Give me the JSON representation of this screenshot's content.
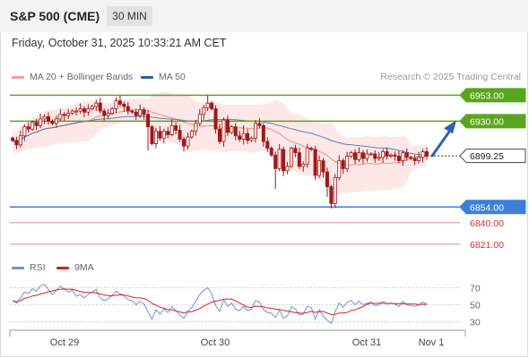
{
  "header": {
    "title": "S&P 500 (CME)",
    "timeframe": "30 MIN",
    "datetime": "Friday, October 31, 2025 10:33:21 AM CET"
  },
  "legend": {
    "ma20_bb": "MA 20 + Bollinger Bands",
    "ma50": "MA 50",
    "rsi": "RSI",
    "rsi_ma": "9MA",
    "research": "Research © 2025 Trading Central"
  },
  "colors": {
    "resistance": "#5aa51e",
    "support": "#3d7fd8",
    "support_red": "#e08a8a",
    "current": "#2b2b2b",
    "bollinger_fill": "#fde3e3",
    "ma20": "#f08a8a",
    "ma50": "#2f5f9e",
    "rsi": "#6e94d8",
    "rsi_ma": "#d62020",
    "candle": "#a01818",
    "arrow": "#2f63a8"
  },
  "chart_data": {
    "type": "candlestick",
    "y_range": [
      6813,
      6962
    ],
    "x_labels": [
      "Oct 29",
      "Oct 30",
      "Oct 31",
      "Nov 1"
    ],
    "levels": [
      {
        "name": "resistance-2",
        "value": 6953.0,
        "label": "6953.00",
        "kind": "resistance"
      },
      {
        "name": "resistance-1",
        "value": 6930.0,
        "label": "6930.00",
        "kind": "resistance"
      },
      {
        "name": "current-price",
        "value": 6899.25,
        "label": "6899.25",
        "kind": "current"
      },
      {
        "name": "support-1",
        "value": 6854.0,
        "label": "6854.00",
        "kind": "support"
      },
      {
        "name": "support-2",
        "value": 6840.0,
        "label": "6840.00",
        "kind": "support_red"
      },
      {
        "name": "support-3",
        "value": 6821.0,
        "label": "6821.00",
        "kind": "support_red"
      }
    ],
    "closes": [
      6913,
      6909,
      6917,
      6925,
      6923,
      6929,
      6926,
      6932,
      6934,
      6930,
      6928,
      6932,
      6936,
      6935,
      6937,
      6939,
      6939,
      6941,
      6938,
      6941,
      6943,
      6946,
      6939,
      6935,
      6937,
      6941,
      6948,
      6945,
      6943,
      6939,
      6938,
      6935,
      6940,
      6936,
      6925,
      6910,
      6921,
      6915,
      6921,
      6918,
      6926,
      6922,
      6914,
      6908,
      6916,
      6921,
      6928,
      6936,
      6942,
      6946,
      6941,
      6923,
      6912,
      6931,
      6920,
      6925,
      6917,
      6914,
      6919,
      6913,
      6915,
      6928,
      6926,
      6912,
      6906,
      6900,
      6888,
      6905,
      6886,
      6890,
      6906,
      6902,
      6890,
      6892,
      6906,
      6905,
      6882,
      6895,
      6885,
      6872,
      6857,
      6880,
      6895,
      6888,
      6899,
      6902,
      6896,
      6902,
      6897,
      6901,
      6901,
      6897,
      6898,
      6903,
      6899,
      6900,
      6899,
      6895,
      6902,
      6898,
      6897,
      6895,
      6898,
      6903,
      6899
    ],
    "rsi_y_range": [
      20,
      80
    ],
    "rsi_ticks": [
      70,
      50,
      30
    ],
    "rsi": [
      55,
      52,
      58,
      65,
      63,
      69,
      66,
      72,
      74,
      68,
      62,
      67,
      72,
      68,
      65,
      67,
      60,
      62,
      58,
      62,
      65,
      68,
      58,
      55,
      57,
      61,
      66,
      63,
      60,
      56,
      55,
      50,
      54,
      51,
      42,
      33,
      44,
      39,
      45,
      41,
      48,
      43,
      38,
      34,
      42,
      47,
      54,
      62,
      67,
      70,
      63,
      49,
      42,
      56,
      48,
      52,
      45,
      43,
      48,
      43,
      45,
      55,
      53,
      44,
      41,
      40,
      35,
      44,
      34,
      37,
      48,
      45,
      38,
      39,
      48,
      47,
      33,
      44,
      37,
      32,
      28,
      42,
      52,
      47,
      53,
      55,
      50,
      54,
      50,
      52,
      53,
      49,
      50,
      54,
      51,
      52,
      51,
      48,
      54,
      50,
      49,
      48,
      50,
      53,
      51
    ],
    "projection": {
      "from": 6899.25,
      "to": 6930
    }
  }
}
